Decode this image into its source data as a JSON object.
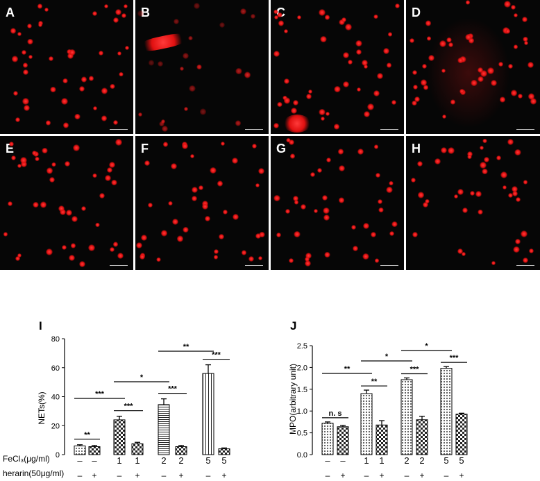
{
  "panels": [
    {
      "letter": "A"
    },
    {
      "letter": "B"
    },
    {
      "letter": "C"
    },
    {
      "letter": "D"
    },
    {
      "letter": "E"
    },
    {
      "letter": "F"
    },
    {
      "letter": "G"
    },
    {
      "letter": "H"
    }
  ],
  "colors": {
    "cell_red": "#e01010",
    "background": "#060606"
  },
  "chart_data": [
    {
      "type": "bar",
      "panel_label": "I",
      "ylabel": "NETs(%)",
      "ylim": [
        0,
        80
      ],
      "yticks": [
        0,
        20,
        40,
        60,
        80
      ],
      "row_labels": [
        "FeCl₃(μg/ml)",
        "herarin(50μg/ml)"
      ],
      "fecl3": [
        "–",
        "–",
        "1",
        "1",
        "2",
        "2",
        "5",
        "5"
      ],
      "heparin": [
        "–",
        "+",
        "–",
        "+",
        "–",
        "+",
        "–",
        "+"
      ],
      "values": [
        6,
        5.5,
        24,
        7.5,
        34.5,
        5.5,
        56,
        4
      ],
      "errors": [
        0.8,
        0.8,
        2.5,
        1,
        4,
        0.8,
        6,
        0.6
      ],
      "significance": [
        {
          "from": 0,
          "to": 1,
          "label": "**"
        },
        {
          "from": 2,
          "to": 3,
          "label": "***"
        },
        {
          "from": 4,
          "to": 5,
          "label": "***"
        },
        {
          "from": 6,
          "to": 7,
          "label": "***"
        },
        {
          "from": 0,
          "to": 2,
          "label": "***"
        },
        {
          "from": 2,
          "to": 4,
          "label": "*"
        },
        {
          "from": 4,
          "to": 6,
          "label": "**"
        }
      ]
    },
    {
      "type": "bar",
      "panel_label": "J",
      "ylabel": "MPO(arbitrary unit)",
      "ylim": [
        0,
        2.5
      ],
      "yticks": [
        "0.0",
        "0.5",
        "1.0",
        "1.5",
        "2.0",
        "2.5"
      ],
      "fecl3": [
        "–",
        "–",
        "1",
        "1",
        "2",
        "2",
        "5",
        "5"
      ],
      "heparin": [
        "–",
        "+",
        "–",
        "+",
        "–",
        "+",
        "–",
        "+"
      ],
      "values": [
        0.72,
        0.64,
        1.4,
        0.68,
        1.72,
        0.8,
        1.98,
        0.93
      ],
      "errors": [
        0.03,
        0.03,
        0.08,
        0.1,
        0.04,
        0.08,
        0.04,
        0.02
      ],
      "significance": [
        {
          "from": 0,
          "to": 1,
          "label": "n. s"
        },
        {
          "from": 2,
          "to": 3,
          "label": "**"
        },
        {
          "from": 4,
          "to": 5,
          "label": "***"
        },
        {
          "from": 6,
          "to": 7,
          "label": "***"
        },
        {
          "from": 0,
          "to": 2,
          "label": "**"
        },
        {
          "from": 2,
          "to": 4,
          "label": "*"
        },
        {
          "from": 4,
          "to": 6,
          "label": "*"
        }
      ]
    }
  ]
}
